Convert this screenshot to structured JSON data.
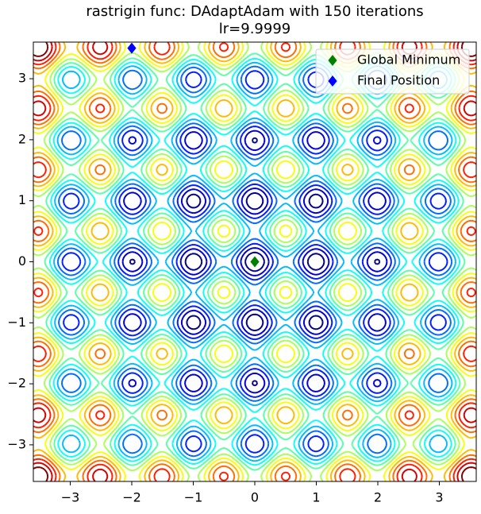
{
  "chart_data": {
    "type": "contour",
    "title": [
      "rastrigin func: DAdaptAdam with 150 iterations",
      "lr=9.9999"
    ],
    "xlim": [
      -3.6,
      3.6
    ],
    "ylim": [
      -3.6,
      3.6
    ],
    "xticks": [
      {
        "value": -3,
        "label": "−3"
      },
      {
        "value": -2,
        "label": "−2"
      },
      {
        "value": -1,
        "label": "−1"
      },
      0,
      1,
      2,
      3
    ],
    "yticks": [
      {
        "value": -3,
        "label": "−3"
      },
      {
        "value": -2,
        "label": "−2"
      },
      {
        "value": -1,
        "label": "−1"
      },
      0,
      1,
      2,
      3
    ],
    "colormap": "jet",
    "legend": "upper right",
    "series": [
      {
        "name": "Global Minimum",
        "color": "#008000",
        "marker": "diamond",
        "x": [
          0
        ],
        "values": [
          0
        ]
      },
      {
        "name": "Final Position",
        "color": "#0000ff",
        "marker": "diamond",
        "x": [
          -2
        ],
        "values": [
          3.5
        ]
      }
    ]
  }
}
